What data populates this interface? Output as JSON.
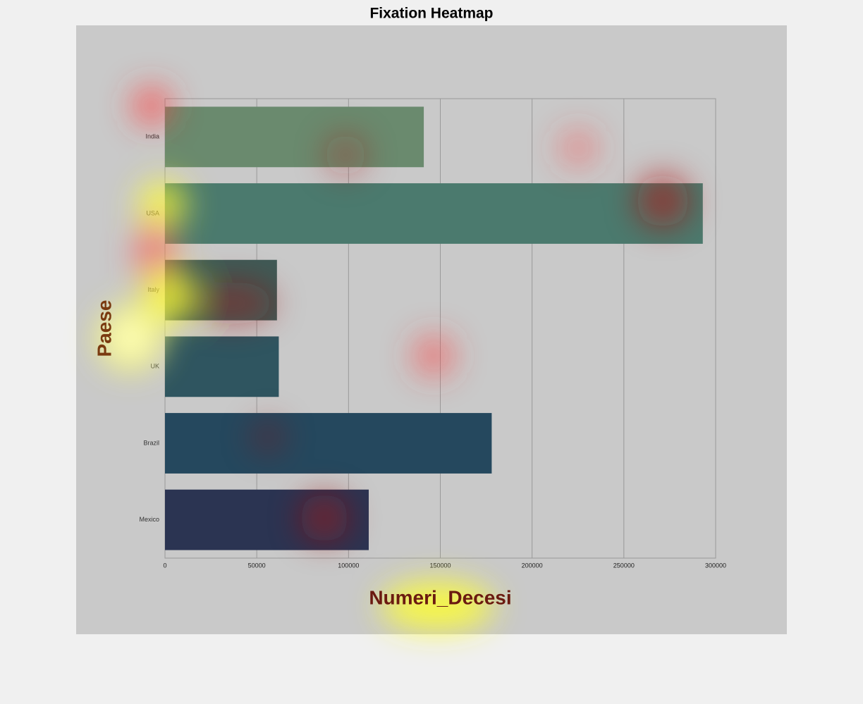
{
  "chart_data": {
    "type": "bar",
    "orientation": "horizontal",
    "title": "Fixation Heatmap",
    "categories": [
      "India",
      "USA",
      "Italy",
      "UK",
      "Brazil",
      "Mexico"
    ],
    "values": [
      141000,
      293000,
      61000,
      62000,
      178000,
      111000
    ],
    "colors": [
      "#6a8a6e",
      "#4b7a6e",
      "#3f5a56",
      "#2f5560",
      "#25485e",
      "#2b3452"
    ],
    "xlabel": "Numeri_Decesi",
    "ylabel": "Paese",
    "xlim": [
      0,
      300000
    ],
    "xticks": [
      0,
      50000,
      100000,
      150000,
      200000,
      250000,
      300000
    ],
    "grid": true
  }
}
